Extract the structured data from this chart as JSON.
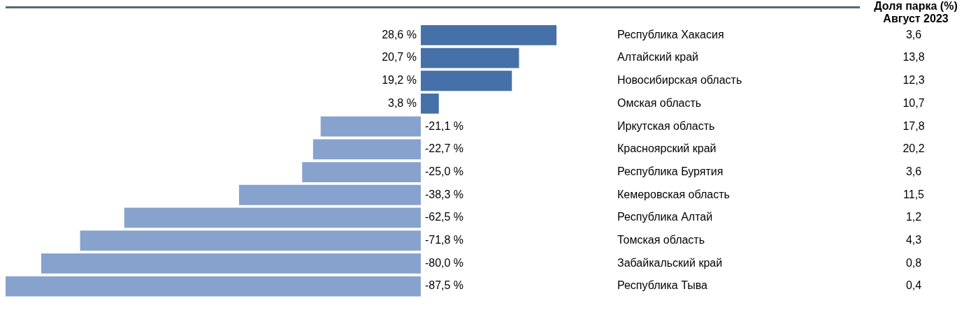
{
  "chart_data": {
    "type": "bar",
    "orientation": "horizontal",
    "categories": [
      "Республика Хакасия",
      "Алтайский край",
      "Новосибирская область",
      "Омская область",
      "Иркутская область",
      "Красноярский край",
      "Республика Бурятия",
      "Кемеровская область",
      "Республика Алтай",
      "Томская область",
      "Забайкальский край",
      "Республика Тыва"
    ],
    "values": [
      28.6,
      20.7,
      19.2,
      3.8,
      -21.1,
      -22.7,
      -25.0,
      -38.3,
      -62.5,
      -71.8,
      -80.0,
      -87.5
    ],
    "colors": [
      "#4670a8",
      "#4670a8",
      "#4670a8",
      "#4670a8",
      "#87a2cd",
      "#87a2cd",
      "#87a2cd",
      "#87a2cd",
      "#87a2cd",
      "#87a2cd",
      "#87a2cd",
      "#87a2cd"
    ],
    "value_labels": [
      "28,6 %",
      "20,7 %",
      "19,2 %",
      "3,8 %",
      "-21,1 %",
      "-22,7 %",
      "-25,0 %",
      "-38,3 %",
      "-62,5 %",
      "-71,8 %",
      "-80,0 %",
      "-87,5 %"
    ],
    "annotations": [
      "Доля парка (%)",
      "Август 2023",
      "3,6",
      "13,8",
      "12,3",
      "10,7",
      "17,8",
      "20,2",
      "3,6",
      "11,5",
      "1,2",
      "4,3",
      "0,8",
      "0,4"
    ]
  }
}
